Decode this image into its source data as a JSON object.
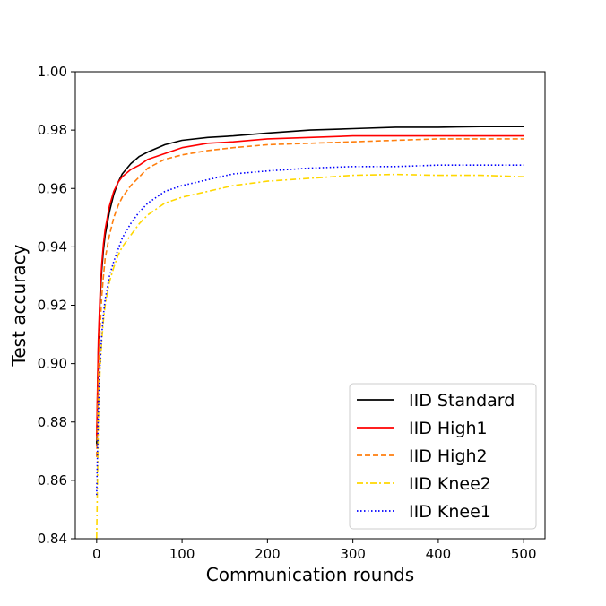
{
  "chart_data": {
    "type": "line",
    "title": "",
    "xlabel": "Communication rounds",
    "ylabel": "Test accuracy",
    "xlim": [
      -25,
      525
    ],
    "ylim": [
      0.84,
      1.0
    ],
    "xticks": [
      "0",
      "100",
      "200",
      "300",
      "400",
      "500"
    ],
    "yticks": [
      "0.84",
      "0.86",
      "0.88",
      "0.90",
      "0.92",
      "0.94",
      "0.96",
      "0.98",
      "1.00"
    ],
    "grid": false,
    "legend_position": "lower-right",
    "series": [
      {
        "name": "IID Standard",
        "color": "#000000",
        "style": "solid",
        "x": [
          0,
          2,
          4,
          6,
          8,
          10,
          15,
          20,
          25,
          30,
          40,
          50,
          60,
          80,
          100,
          130,
          160,
          200,
          250,
          300,
          350,
          400,
          450,
          500
        ],
        "y": [
          0.872,
          0.905,
          0.922,
          0.932,
          0.939,
          0.944,
          0.952,
          0.958,
          0.962,
          0.965,
          0.9685,
          0.971,
          0.9725,
          0.975,
          0.9765,
          0.9775,
          0.978,
          0.979,
          0.98,
          0.9805,
          0.981,
          0.981,
          0.9812,
          0.9812
        ]
      },
      {
        "name": "IID High1",
        "color": "#ff0000",
        "style": "solid",
        "x": [
          0,
          2,
          4,
          6,
          8,
          10,
          15,
          20,
          25,
          30,
          40,
          50,
          60,
          80,
          100,
          130,
          160,
          200,
          250,
          300,
          350,
          400,
          450,
          500
        ],
        "y": [
          0.875,
          0.908,
          0.924,
          0.934,
          0.941,
          0.946,
          0.954,
          0.959,
          0.962,
          0.964,
          0.9665,
          0.968,
          0.97,
          0.972,
          0.974,
          0.9755,
          0.976,
          0.977,
          0.9775,
          0.978,
          0.978,
          0.978,
          0.978,
          0.978
        ]
      },
      {
        "name": "IID High2",
        "color": "#ff7f0e",
        "style": "dashed",
        "x": [
          0,
          2,
          4,
          6,
          8,
          10,
          15,
          20,
          25,
          30,
          40,
          50,
          60,
          80,
          100,
          130,
          160,
          200,
          250,
          300,
          350,
          400,
          450,
          500
        ],
        "y": [
          0.868,
          0.895,
          0.912,
          0.923,
          0.93,
          0.936,
          0.944,
          0.95,
          0.954,
          0.957,
          0.961,
          0.964,
          0.967,
          0.97,
          0.9715,
          0.973,
          0.974,
          0.975,
          0.9755,
          0.976,
          0.9765,
          0.977,
          0.977,
          0.977
        ]
      },
      {
        "name": "IID Knee2",
        "color": "#ffd700",
        "style": "dashdot",
        "x": [
          0,
          2,
          4,
          6,
          8,
          10,
          15,
          20,
          25,
          30,
          40,
          50,
          60,
          80,
          100,
          130,
          160,
          200,
          250,
          300,
          350,
          400,
          450,
          500
        ],
        "y": [
          0.84,
          0.88,
          0.898,
          0.908,
          0.915,
          0.92,
          0.928,
          0.933,
          0.937,
          0.94,
          0.944,
          0.948,
          0.951,
          0.955,
          0.957,
          0.959,
          0.961,
          0.9625,
          0.9635,
          0.9645,
          0.9648,
          0.9645,
          0.9645,
          0.964
        ]
      },
      {
        "name": "IID Knee1",
        "color": "#0000ff",
        "style": "dotted",
        "x": [
          0,
          2,
          4,
          6,
          8,
          10,
          15,
          20,
          25,
          30,
          40,
          50,
          60,
          80,
          100,
          130,
          160,
          200,
          250,
          300,
          350,
          400,
          450,
          500
        ],
        "y": [
          0.855,
          0.884,
          0.9,
          0.91,
          0.917,
          0.922,
          0.93,
          0.935,
          0.939,
          0.943,
          0.948,
          0.952,
          0.955,
          0.959,
          0.961,
          0.963,
          0.965,
          0.966,
          0.967,
          0.9675,
          0.9675,
          0.968,
          0.968,
          0.968
        ]
      }
    ]
  }
}
